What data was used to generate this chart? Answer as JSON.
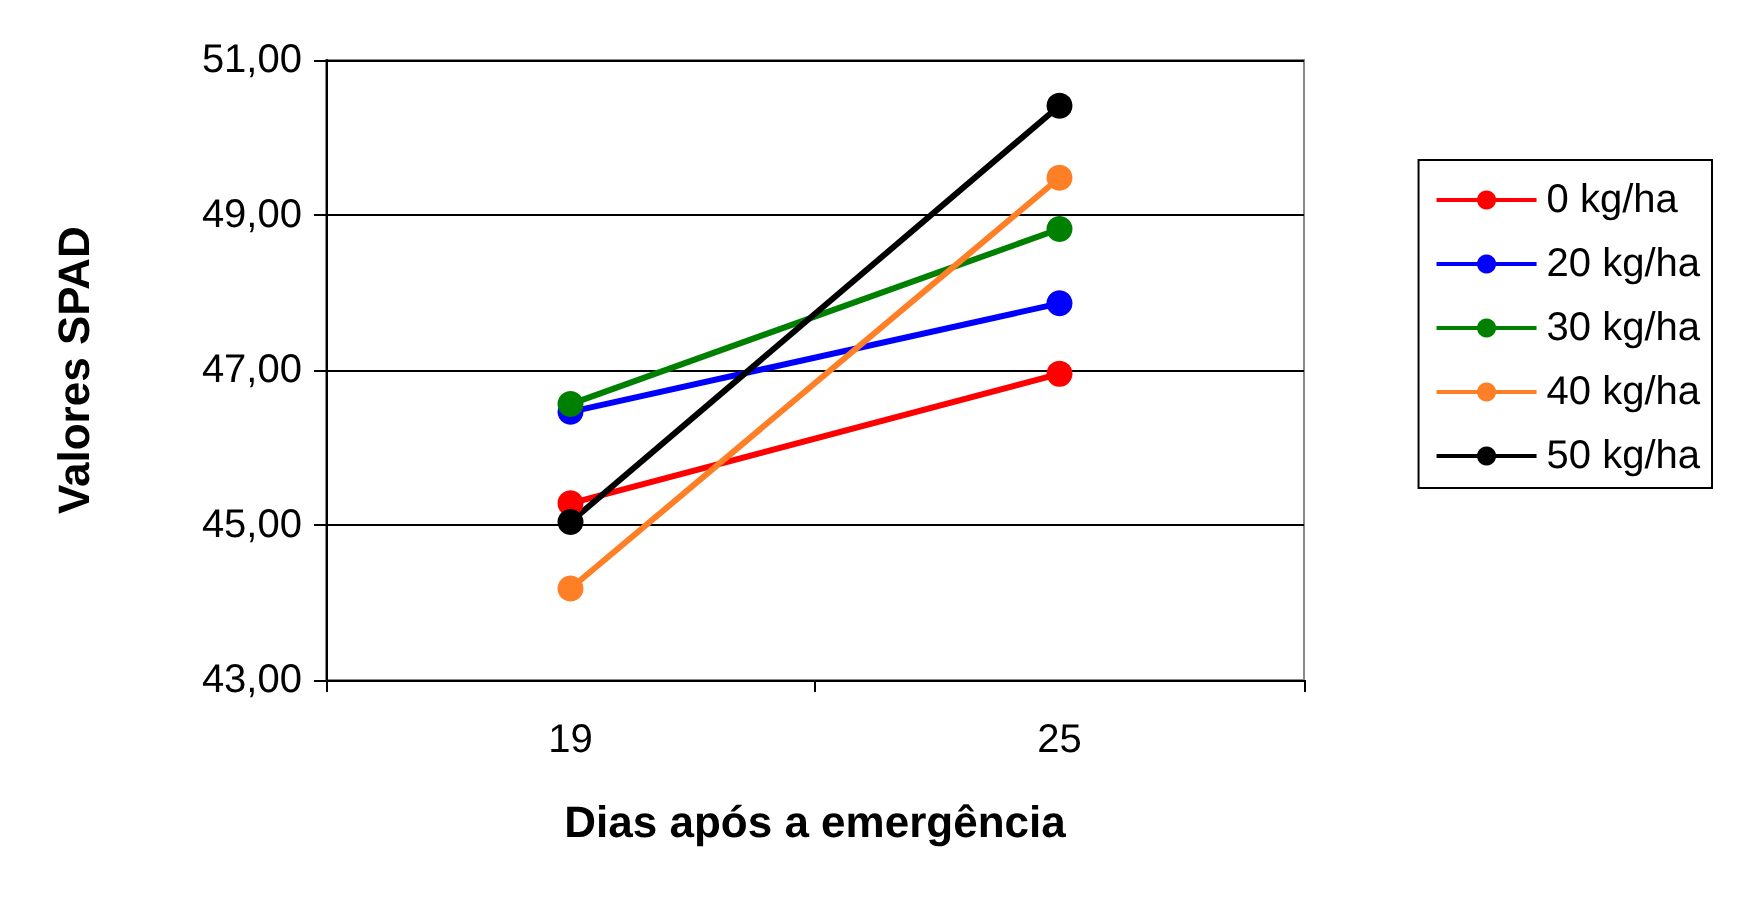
{
  "chart_data": {
    "type": "line",
    "xlabel": "Dias após a emergência",
    "ylabel": "Valores SPAD",
    "categories": [
      "19",
      "25"
    ],
    "series": [
      {
        "name": "0 kg/ha",
        "color": "#ff0000",
        "values": [
          45.28,
          46.95
        ]
      },
      {
        "name": "20 kg/ha",
        "color": "#0000ff",
        "values": [
          46.46,
          47.86
        ]
      },
      {
        "name": "30 kg/ha",
        "color": "#008000",
        "values": [
          46.56,
          48.82
        ]
      },
      {
        "name": "40 kg/ha",
        "color": "#ff7f27",
        "values": [
          44.18,
          49.48
        ]
      },
      {
        "name": "50 kg/ha",
        "color": "#000000",
        "values": [
          45.04,
          50.41
        ]
      }
    ],
    "ylim": [
      43,
      51
    ],
    "yticks": [
      {
        "value": 43,
        "label": "43,00"
      },
      {
        "value": 45,
        "label": "45,00"
      },
      {
        "value": 47,
        "label": "47,00"
      },
      {
        "value": 49,
        "label": "49,00"
      },
      {
        "value": 51,
        "label": "51,00"
      }
    ],
    "grid": "y",
    "legend": "right",
    "marker": "circle",
    "line_style": "solid"
  }
}
